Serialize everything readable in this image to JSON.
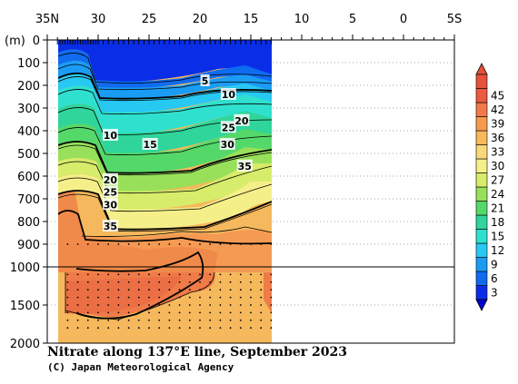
{
  "chart_data": {
    "type": "heatmap",
    "title": "Nitrate along 137°E line, September 2023",
    "credit": "(C) Japan Meteorological Agency",
    "ylabel": "(m)",
    "x_ticks": [
      "35N",
      "30",
      "25",
      "20",
      "15",
      "10",
      "5",
      "0",
      "5S"
    ],
    "y_ticks_upper": [
      "0",
      "100",
      "200",
      "300",
      "400",
      "500",
      "600",
      "700",
      "800",
      "900",
      "1000"
    ],
    "y_ticks_lower": [
      "1500",
      "2000"
    ],
    "x_range_lat": [
      35,
      -5
    ],
    "data_extent_lat": [
      34,
      13
    ],
    "y_range_m": [
      0,
      2000
    ],
    "y_break_m": 1000,
    "colorbar": {
      "ticks": [
        "3",
        "6",
        "9",
        "12",
        "15",
        "18",
        "21",
        "24",
        "27",
        "30",
        "33",
        "36",
        "39",
        "42",
        "45"
      ],
      "colors": [
        "#0a2ee8",
        "#0f6bf0",
        "#1a9cf5",
        "#27c8f2",
        "#2fe0cf",
        "#2fd59a",
        "#55d86a",
        "#98e05a",
        "#d6ec6a",
        "#f5ef8a",
        "#f9d77a",
        "#f9b85a",
        "#f79a4e",
        "#f27a4a",
        "#ec5a40",
        "#e8503c"
      ]
    },
    "contour_labels": [
      {
        "text": "5",
        "lat": 19.5,
        "depth": 180
      },
      {
        "text": "10",
        "lat": 17.2,
        "depth": 240
      },
      {
        "text": "10",
        "lat": 28.8,
        "depth": 420
      },
      {
        "text": "15",
        "lat": 24.9,
        "depth": 460
      },
      {
        "text": "25",
        "lat": 17.2,
        "depth": 385
      },
      {
        "text": "20",
        "lat": 15.9,
        "depth": 355
      },
      {
        "text": "30",
        "lat": 17.3,
        "depth": 460
      },
      {
        "text": "35",
        "lat": 15.6,
        "depth": 555
      },
      {
        "text": "20",
        "lat": 28.8,
        "depth": 615
      },
      {
        "text": "25",
        "lat": 28.8,
        "depth": 670
      },
      {
        "text": "30",
        "lat": 28.8,
        "depth": 725
      },
      {
        "text": "35",
        "lat": 28.8,
        "depth": 820
      }
    ]
  }
}
